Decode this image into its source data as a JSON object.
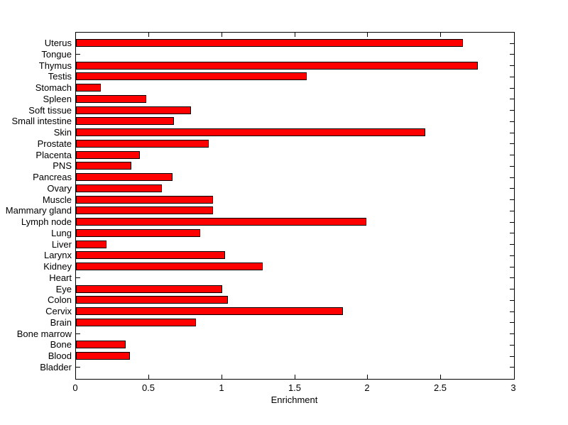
{
  "figure": {
    "background": "#ffffff"
  },
  "chart_data": {
    "type": "bar",
    "orientation": "horizontal",
    "title": "",
    "xlabel": "Enrichment",
    "ylabel": "",
    "xlim": [
      0,
      3
    ],
    "xticks": [
      0,
      0.5,
      1,
      1.5,
      2,
      2.5,
      3
    ],
    "xtick_labels": [
      "0",
      "0.5",
      "1",
      "1.5",
      "2",
      "2.5",
      "3"
    ],
    "grid": false,
    "legend": "none",
    "bar_color": "#ff0000",
    "bar_edge_color": "#000000",
    "axis_color": "#000000",
    "categories": [
      "Uterus",
      "Tongue",
      "Thymus",
      "Testis",
      "Stomach",
      "Spleen",
      "Soft tissue",
      "Small intestine",
      "Skin",
      "Prostate",
      "Placenta",
      "PNS",
      "Pancreas",
      "Ovary",
      "Muscle",
      "Mammary gland",
      "Lymph node",
      "Lung",
      "Liver",
      "Larynx",
      "Kidney",
      "Heart",
      "Eye",
      "Colon",
      "Cervix",
      "Brain",
      "Bone marrow",
      "Bone",
      "Blood",
      "Bladder"
    ],
    "values": [
      2.65,
      0,
      2.75,
      1.58,
      0.17,
      0.48,
      0.79,
      0.67,
      2.39,
      0.91,
      0.44,
      0.38,
      0.66,
      0.59,
      0.94,
      0.94,
      1.99,
      0.85,
      0.21,
      1.02,
      1.28,
      0,
      1.0,
      1.04,
      1.83,
      0.82,
      0,
      0.34,
      0.37,
      0
    ]
  }
}
